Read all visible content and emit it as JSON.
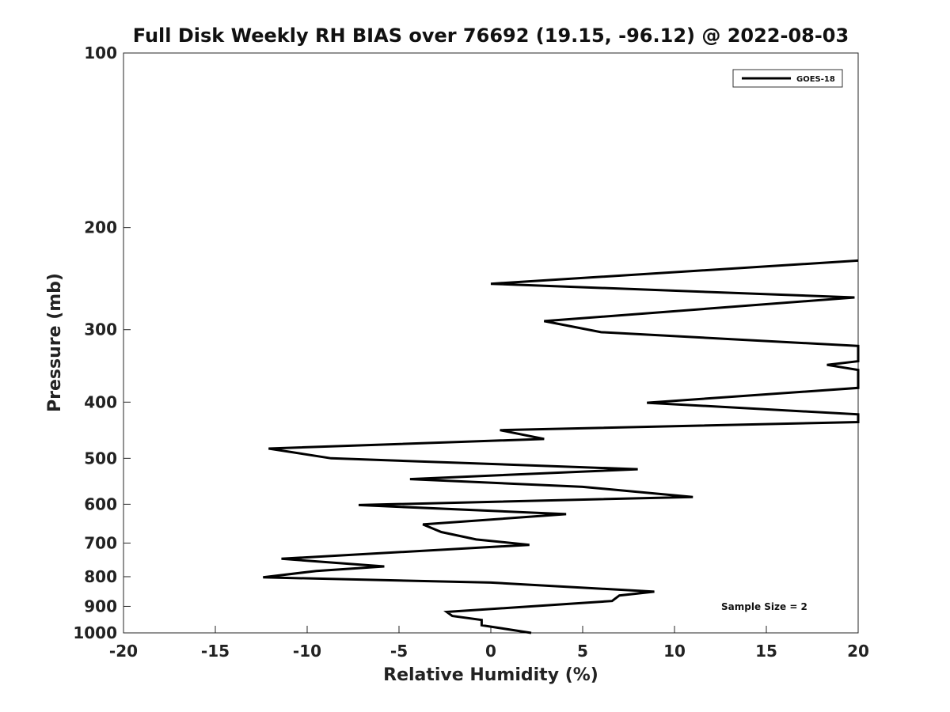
{
  "chart_data": {
    "type": "line",
    "title": "Full Disk Weekly RH BIAS over 76692 (19.15, -96.12) @ 2022-08-03",
    "xlabel": "Relative Humidity (%)",
    "ylabel": "Pressure (mb)",
    "xlim": [
      -20,
      20
    ],
    "ylim": [
      100,
      1000
    ],
    "yscale": "log",
    "y_inverted": true,
    "xticks": [
      -20,
      -15,
      -10,
      -5,
      0,
      5,
      10,
      15,
      20
    ],
    "yticks": [
      100,
      200,
      300,
      400,
      500,
      600,
      700,
      800,
      900,
      1000
    ],
    "grid": false,
    "legend_position": "top-right",
    "annotation": "Sample Size = 2",
    "series": [
      {
        "name": "GOES-18",
        "color": "#000000",
        "points": [
          [
            20,
            228
          ],
          [
            0,
            250
          ],
          [
            19.8,
            264
          ],
          [
            2.9,
            290
          ],
          [
            6.0,
            303
          ],
          [
            20,
            320
          ],
          [
            20,
            340
          ],
          [
            18.3,
            345
          ],
          [
            20,
            352
          ],
          [
            20,
            378
          ],
          [
            8.5,
            401
          ],
          [
            20,
            420
          ],
          [
            20,
            433
          ],
          [
            0.5,
            447
          ],
          [
            2.9,
            463
          ],
          [
            -12.1,
            481
          ],
          [
            -8.7,
            500
          ],
          [
            8.0,
            522
          ],
          [
            -4.4,
            543
          ],
          [
            5.0,
            560
          ],
          [
            11.0,
            583
          ],
          [
            -7.2,
            602
          ],
          [
            4.1,
            624
          ],
          [
            -3.7,
            650
          ],
          [
            -2.7,
            670
          ],
          [
            -0.8,
            690
          ],
          [
            2.1,
            705
          ],
          [
            -11.4,
            745
          ],
          [
            -5.8,
            768
          ],
          [
            -9.5,
            782
          ],
          [
            -12.4,
            802
          ],
          [
            0,
            819
          ],
          [
            8.9,
            849
          ],
          [
            7.0,
            862
          ],
          [
            6.6,
            881
          ],
          [
            -2.4,
            920
          ],
          [
            -2.1,
            935
          ],
          [
            -0.5,
            950
          ],
          [
            -0.5,
            970
          ],
          [
            2.2,
            1000
          ]
        ]
      }
    ]
  }
}
